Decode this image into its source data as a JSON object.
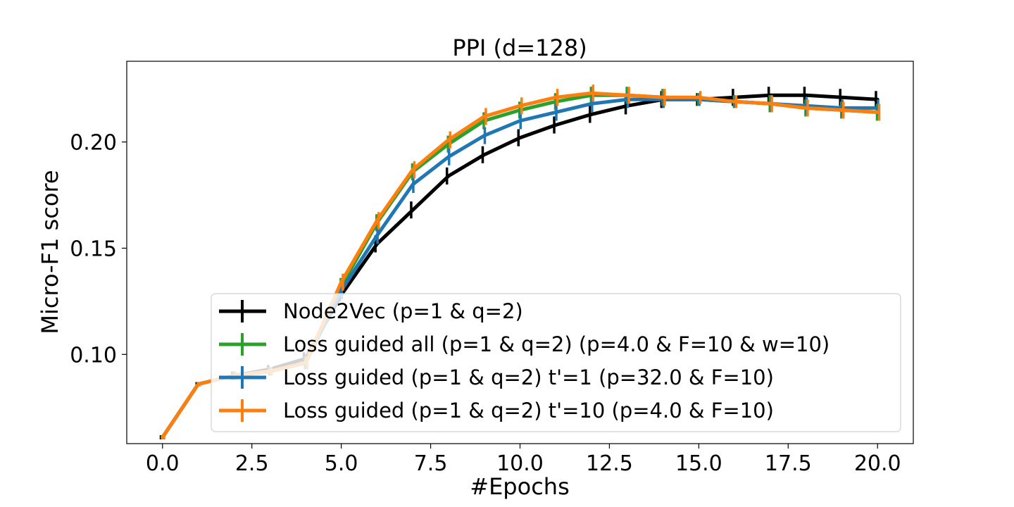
{
  "chart_data": {
    "type": "line",
    "title": "PPI (d=128)",
    "xlabel": "#Epochs",
    "ylabel": "Micro-F1 score",
    "xlim": [
      -1.0,
      21.0
    ],
    "ylim": [
      0.058,
      0.238
    ],
    "xticks": [
      0.0,
      2.5,
      5.0,
      7.5,
      10.0,
      12.5,
      15.0,
      17.5,
      20.0
    ],
    "xtick_labels": [
      "0.0",
      "2.5",
      "5.0",
      "7.5",
      "10.0",
      "12.5",
      "15.0",
      "17.5",
      "20.0"
    ],
    "yticks": [
      0.1,
      0.15,
      0.2
    ],
    "ytick_labels": [
      "0.10",
      "0.15",
      "0.20"
    ],
    "grid": false,
    "legend_position": "lower-right",
    "error_bars": "vertical error bars at integer epochs",
    "series": [
      {
        "name": "Node2Vec (p=1 & q=2)",
        "color": "#000000",
        "x": [
          0,
          1,
          2,
          3,
          4,
          5,
          6,
          7,
          8,
          9,
          10,
          11,
          12,
          13,
          14,
          15,
          16,
          17,
          18,
          19,
          20
        ],
        "values": [
          0.061,
          0.086,
          0.09,
          0.093,
          0.098,
          0.128,
          0.152,
          0.168,
          0.184,
          0.194,
          0.202,
          0.208,
          0.213,
          0.217,
          0.22,
          0.22,
          0.221,
          0.222,
          0.222,
          0.221,
          0.22
        ],
        "errors": [
          0.001,
          0.001,
          0.002,
          0.002,
          0.003,
          0.003,
          0.004,
          0.004,
          0.004,
          0.004,
          0.004,
          0.004,
          0.004,
          0.004,
          0.004,
          0.003,
          0.004,
          0.004,
          0.004,
          0.004,
          0.004
        ]
      },
      {
        "name": "Loss guided all (p=1 & q=2)  (p=4.0 & F=10 & w=10)",
        "color": "#2ca02c",
        "x": [
          0,
          1,
          2,
          3,
          4,
          5,
          6,
          7,
          8,
          9,
          10,
          11,
          12,
          13,
          14,
          15,
          16,
          17,
          18,
          19,
          20
        ],
        "values": [
          0.061,
          0.086,
          0.09,
          0.092,
          0.096,
          0.132,
          0.162,
          0.186,
          0.199,
          0.21,
          0.215,
          0.219,
          0.222,
          0.222,
          0.221,
          0.22,
          0.219,
          0.218,
          0.216,
          0.215,
          0.214
        ],
        "errors": [
          0.001,
          0.001,
          0.002,
          0.002,
          0.003,
          0.004,
          0.004,
          0.004,
          0.004,
          0.004,
          0.004,
          0.004,
          0.004,
          0.004,
          0.004,
          0.003,
          0.003,
          0.004,
          0.004,
          0.004,
          0.004
        ]
      },
      {
        "name": "Loss guided  (p=1 & q=2)  t'=1  (p=32.0 & F=10)",
        "color": "#1f77b4",
        "x": [
          0,
          1,
          2,
          3,
          4,
          5,
          6,
          7,
          8,
          9,
          10,
          11,
          12,
          13,
          14,
          15,
          16,
          17,
          18,
          19,
          20
        ],
        "values": [
          0.061,
          0.086,
          0.09,
          0.092,
          0.096,
          0.13,
          0.156,
          0.18,
          0.193,
          0.203,
          0.21,
          0.214,
          0.218,
          0.22,
          0.22,
          0.22,
          0.219,
          0.218,
          0.217,
          0.216,
          0.216
        ],
        "errors": [
          0.001,
          0.001,
          0.002,
          0.002,
          0.003,
          0.004,
          0.004,
          0.004,
          0.004,
          0.004,
          0.004,
          0.004,
          0.004,
          0.004,
          0.004,
          0.003,
          0.003,
          0.004,
          0.004,
          0.004,
          0.004
        ]
      },
      {
        "name": "Loss guided  (p=1 & q=2)  t'=10  (p=4.0 & F=10)",
        "color": "#ff7f0e",
        "x": [
          0,
          1,
          2,
          3,
          4,
          5,
          6,
          7,
          8,
          9,
          10,
          11,
          12,
          13,
          14,
          15,
          16,
          17,
          18,
          19,
          20
        ],
        "values": [
          0.061,
          0.086,
          0.09,
          0.092,
          0.096,
          0.134,
          0.163,
          0.187,
          0.201,
          0.212,
          0.217,
          0.221,
          0.223,
          0.222,
          0.221,
          0.221,
          0.219,
          0.218,
          0.216,
          0.215,
          0.214
        ],
        "errors": [
          0.001,
          0.001,
          0.002,
          0.002,
          0.003,
          0.004,
          0.004,
          0.004,
          0.004,
          0.004,
          0.004,
          0.004,
          0.004,
          0.004,
          0.004,
          0.003,
          0.003,
          0.004,
          0.004,
          0.004,
          0.004
        ]
      }
    ]
  }
}
